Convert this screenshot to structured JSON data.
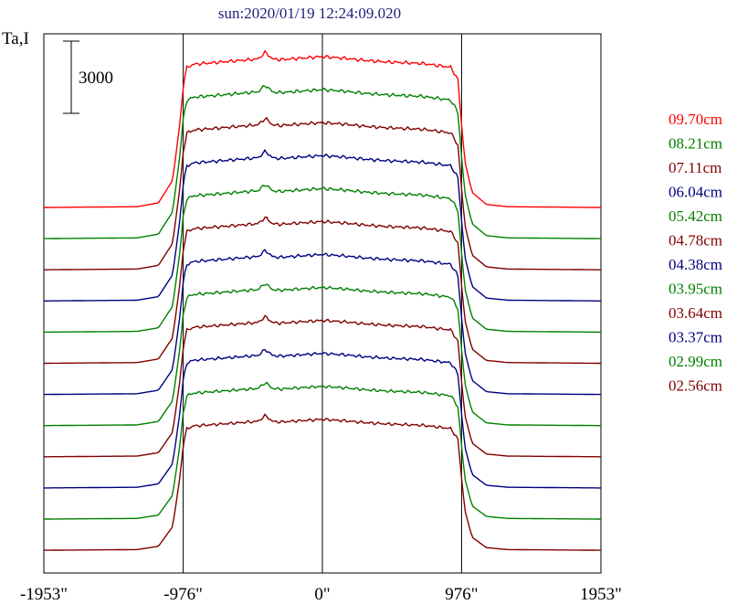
{
  "chart_data": {
    "type": "line",
    "title": "sun:2020/01/19 12:24:09.020",
    "ylabel": "Ta,I",
    "scale_bar_label": "3000",
    "scale_bar_value": 3000,
    "x_ticks": [
      "-1953\"",
      "-976\"",
      "0\"",
      "976\"",
      "1953\""
    ],
    "x_tick_values": [
      -1953,
      -976,
      0,
      976,
      1953
    ],
    "x_range": [
      -1953,
      1953
    ],
    "limb_lines": [
      -976,
      0,
      976
    ],
    "grid": false,
    "legend_position": "right",
    "series": [
      {
        "name": "09.70cm",
        "color": "#ff0000"
      },
      {
        "name": "08.21cm",
        "color": "#008000"
      },
      {
        "name": "07.11cm",
        "color": "#800000"
      },
      {
        "name": "06.04cm",
        "color": "#000080"
      },
      {
        "name": "05.42cm",
        "color": "#008000"
      },
      {
        "name": "04.78cm",
        "color": "#800000"
      },
      {
        "name": "04.38cm",
        "color": "#000080"
      },
      {
        "name": "03.95cm",
        "color": "#008000"
      },
      {
        "name": "03.64cm",
        "color": "#800000"
      },
      {
        "name": "03.37cm",
        "color": "#000080"
      },
      {
        "name": "02.99cm",
        "color": "#008000"
      },
      {
        "name": "02.56cm",
        "color": "#800000"
      }
    ],
    "profile_shape": {
      "x": [
        -1953,
        -1300,
        -1150,
        -1050,
        -1000,
        -976,
        -950,
        -900,
        -700,
        -450,
        -400,
        -350,
        -300,
        -150,
        0,
        150,
        300,
        450,
        700,
        900,
        950,
        976,
        1000,
        1050,
        1150,
        1300,
        1953
      ],
      "relative_level": [
        0,
        0.005,
        0.03,
        0.18,
        0.55,
        0.8,
        0.93,
        0.95,
        0.965,
        0.985,
        1.03,
        0.985,
        0.98,
        0.99,
        1.0,
        0.99,
        0.975,
        0.965,
        0.955,
        0.93,
        0.85,
        0.55,
        0.3,
        0.1,
        0.02,
        0.005,
        0
      ]
    }
  }
}
